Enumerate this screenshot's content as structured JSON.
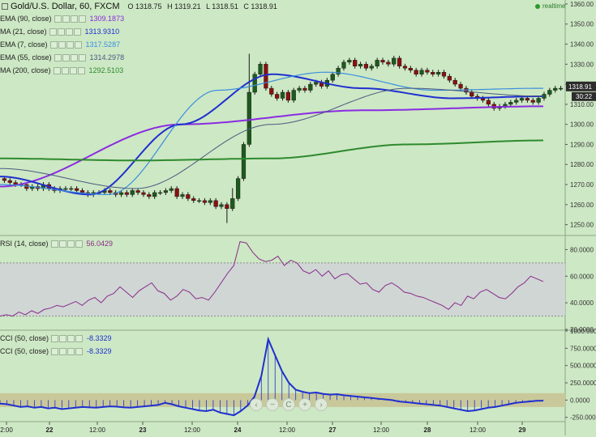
{
  "header": {
    "title": "Gold/U.S. Dollar, 60, FXCM",
    "ohlc": [
      "O 1318.75",
      "H 1319.21",
      "L 1318.51",
      "C 1318.91"
    ],
    "realtime": "realtime"
  },
  "indicators": [
    {
      "name": "EMA (90, close)",
      "value": "1309.1873",
      "color": "#8a2be2"
    },
    {
      "name": "MA (21, close)",
      "value": "1313.9310",
      "color": "#1f2fd0"
    },
    {
      "name": "EMA (7, close)",
      "value": "1317.5287",
      "color": "#3a8ee0"
    },
    {
      "name": "EMA (55, close)",
      "value": "1314.2978",
      "color": "#4a5a80"
    },
    {
      "name": "MA (200, close)",
      "value": "1292.5103",
      "color": "#2e8a2e"
    }
  ],
  "rsi_panel": {
    "name": "RSI (14, close)",
    "value": "56.0429",
    "color": "#8a2b8a"
  },
  "cci_panel": [
    {
      "name": "CCI (50, close)",
      "value": "-8.3329",
      "color": "#1f2fd0"
    },
    {
      "name": "CCI (50, close)",
      "value": "-8.3329",
      "color": "#1f2fd0"
    }
  ],
  "price_tags": {
    "last": "1318.91",
    "countdown": "30:22"
  },
  "nav_buttons": [
    "‹",
    "−",
    "C",
    "+",
    "›"
  ],
  "chart_data": [
    {
      "type": "candlestick",
      "title": "Gold/U.S. Dollar, 60, FXCM",
      "ylim": [
        1245,
        1362
      ],
      "yticks": [
        "1250.00",
        "1260.00",
        "1270.00",
        "1280.00",
        "1290.00",
        "1300.00",
        "1310.00",
        "1320.00",
        "1330.00",
        "1340.00",
        "1350.00",
        "1360.00"
      ],
      "xticks": [
        "2:00",
        "22",
        "12:00",
        "23",
        "12:00",
        "24",
        "12:00",
        "27",
        "12:00",
        "28",
        "12:00",
        "29"
      ],
      "close": [
        1272,
        1271,
        1270,
        1270,
        1268,
        1269,
        1268,
        1270,
        1268,
        1267,
        1268,
        1268,
        1268,
        1267,
        1266,
        1265,
        1266,
        1266,
        1267,
        1266,
        1265,
        1266,
        1265,
        1267,
        1266,
        1265,
        1264,
        1266,
        1266,
        1267,
        1268,
        1264,
        1265,
        1263,
        1262,
        1262,
        1261,
        1262,
        1259,
        1260,
        1258,
        1263,
        1273,
        1290,
        1316,
        1325,
        1330,
        1318,
        1315,
        1313,
        1316,
        1312,
        1317,
        1318,
        1317,
        1320,
        1321,
        1319,
        1322,
        1325,
        1328,
        1331,
        1332,
        1329,
        1330,
        1328,
        1329,
        1332,
        1331,
        1330,
        1333,
        1329,
        1328,
        1327,
        1325,
        1327,
        1326,
        1325,
        1326,
        1324,
        1322,
        1320,
        1318,
        1316,
        1314,
        1313,
        1312,
        1310,
        1308,
        1309,
        1310,
        1311,
        1312,
        1313,
        1312,
        1311,
        1313,
        1315,
        1317,
        1318,
        1318
      ],
      "series": [
        {
          "name": "EMA (90, close)",
          "values": [
            1269,
            1300,
            1307,
            1309
          ]
        },
        {
          "name": "MA (21, close)",
          "values": [
            1274,
            1265,
            1300,
            1325,
            1318,
            1313,
            1314
          ]
        },
        {
          "name": "EMA (7, close)",
          "values": [
            1270,
            1265,
            1317,
            1326,
            1317,
            1318
          ]
        },
        {
          "name": "EMA (55, close)",
          "values": [
            1278,
            1268,
            1300,
            1318,
            1314
          ]
        },
        {
          "name": "MA (200, close)",
          "values": [
            1283,
            1282,
            1283,
            1290,
            1292
          ]
        }
      ]
    },
    {
      "type": "line",
      "title": "RSI (14, close)",
      "ylim": [
        20,
        90
      ],
      "yticks": [
        "80.0000",
        "60.0000",
        "40.0000",
        "20.0000"
      ],
      "band": [
        30,
        70
      ],
      "values": [
        30,
        31,
        30,
        33,
        31,
        34,
        32,
        35,
        36,
        38,
        37,
        39,
        41,
        38,
        42,
        44,
        40,
        45,
        47,
        52,
        48,
        44,
        49,
        52,
        55,
        49,
        47,
        42,
        45,
        50,
        48,
        43,
        44,
        42,
        48,
        55,
        62,
        68,
        86,
        85,
        78,
        73,
        71,
        72,
        75,
        68,
        72,
        70,
        64,
        62,
        65,
        60,
        64,
        58,
        61,
        62,
        58,
        54,
        55,
        50,
        48,
        53,
        55,
        52,
        48,
        47,
        45,
        44,
        42,
        40,
        38,
        35,
        40,
        38,
        45,
        43,
        48,
        50,
        47,
        44,
        43,
        47,
        52,
        55,
        60,
        58,
        56
      ],
      "xticks": []
    },
    {
      "type": "line",
      "title": "CCI (50, close)",
      "ylim": [
        -300,
        1000
      ],
      "yticks": [
        "1000.0000",
        "750.0000",
        "500.0000",
        "250.0000",
        "0.0000",
        "-250.0000"
      ],
      "band": [
        -100,
        100
      ],
      "values": [
        -50,
        -60,
        -80,
        -100,
        -90,
        -110,
        -100,
        -120,
        -110,
        -130,
        -120,
        -110,
        -100,
        -105,
        -110,
        -100,
        -90,
        -95,
        -105,
        -110,
        -100,
        -90,
        -80,
        -70,
        -40,
        -60,
        -90,
        -110,
        -130,
        -150,
        -160,
        -140,
        -180,
        -200,
        -220,
        -160,
        -80,
        50,
        350,
        880,
        650,
        420,
        250,
        150,
        120,
        100,
        110,
        90,
        80,
        85,
        70,
        60,
        50,
        40,
        30,
        20,
        10,
        0,
        -20,
        -30,
        -40,
        -50,
        -60,
        -70,
        -80,
        -100,
        -120,
        -140,
        -160,
        -150,
        -130,
        -110,
        -100,
        -80,
        -60,
        -40,
        -30,
        -20,
        -10,
        -8
      ]
    }
  ]
}
